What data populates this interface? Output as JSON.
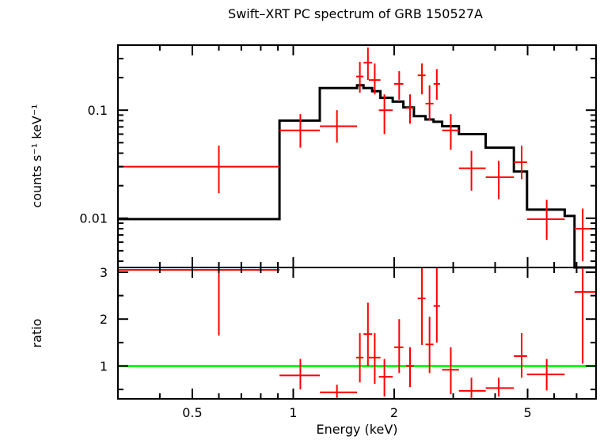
{
  "chart_data": [
    {
      "type": "scatter",
      "panel": "spectrum",
      "title": "Swift–XRT PC spectrum of GRB 150527A",
      "ylabel": "counts s⁻¹ keV⁻¹",
      "xscale": "log",
      "yscale": "log",
      "xlim": [
        0.3,
        8.0
      ],
      "ylim": [
        0.0035,
        0.4
      ],
      "y_tick_labels": [
        {
          "value": 0.1,
          "label": "0.1"
        },
        {
          "value": 0.01,
          "label": "0.01"
        }
      ],
      "series": [
        {
          "kind": "data",
          "color": "#ff0000",
          "points": [
            {
              "x": 0.6,
              "xlo": 0.3,
              "xhi": 0.91,
              "y": 0.03,
              "ylo": 0.017,
              "yhi": 0.047
            },
            {
              "x": 1.05,
              "xlo": 0.91,
              "xhi": 1.2,
              "y": 0.065,
              "ylo": 0.045,
              "yhi": 0.092
            },
            {
              "x": 1.35,
              "xlo": 1.2,
              "xhi": 1.55,
              "y": 0.071,
              "ylo": 0.05,
              "yhi": 0.1
            },
            {
              "x": 1.58,
              "xlo": 1.54,
              "xhi": 1.62,
              "y": 0.205,
              "ylo": 0.145,
              "yhi": 0.28
            },
            {
              "x": 1.67,
              "xlo": 1.62,
              "xhi": 1.72,
              "y": 0.275,
              "ylo": 0.19,
              "yhi": 0.38
            },
            {
              "x": 1.75,
              "xlo": 1.68,
              "xhi": 1.82,
              "y": 0.19,
              "ylo": 0.14,
              "yhi": 0.27
            },
            {
              "x": 1.87,
              "xlo": 1.8,
              "xhi": 1.98,
              "y": 0.1,
              "ylo": 0.06,
              "yhi": 0.14
            },
            {
              "x": 2.07,
              "xlo": 2.0,
              "xhi": 2.13,
              "y": 0.175,
              "ylo": 0.125,
              "yhi": 0.23
            },
            {
              "x": 2.23,
              "xlo": 2.17,
              "xhi": 2.29,
              "y": 0.105,
              "ylo": 0.075,
              "yhi": 0.14
            },
            {
              "x": 2.42,
              "xlo": 2.35,
              "xhi": 2.48,
              "y": 0.21,
              "ylo": 0.14,
              "yhi": 0.27
            },
            {
              "x": 2.55,
              "xlo": 2.48,
              "xhi": 2.62,
              "y": 0.115,
              "ylo": 0.08,
              "yhi": 0.17
            },
            {
              "x": 2.68,
              "xlo": 2.62,
              "xhi": 2.74,
              "y": 0.175,
              "ylo": 0.125,
              "yhi": 0.24
            },
            {
              "x": 2.95,
              "xlo": 2.78,
              "xhi": 3.12,
              "y": 0.065,
              "ylo": 0.043,
              "yhi": 0.092
            },
            {
              "x": 3.4,
              "xlo": 3.12,
              "xhi": 3.75,
              "y": 0.029,
              "ylo": 0.018,
              "yhi": 0.042
            },
            {
              "x": 4.1,
              "xlo": 3.75,
              "xhi": 4.55,
              "y": 0.024,
              "ylo": 0.015,
              "yhi": 0.034
            },
            {
              "x": 4.8,
              "xlo": 4.55,
              "xhi": 4.98,
              "y": 0.033,
              "ylo": 0.023,
              "yhi": 0.047
            },
            {
              "x": 5.7,
              "xlo": 4.98,
              "xhi": 6.45,
              "y": 0.0098,
              "ylo": 0.0063,
              "yhi": 0.0148
            },
            {
              "x": 7.3,
              "xlo": 6.9,
              "xhi": 8.0,
              "y": 0.008,
              "ylo": 0.004,
              "yhi": 0.0123
            }
          ]
        },
        {
          "kind": "model",
          "color": "#000000",
          "steps": [
            {
              "x0": 0.3,
              "x1": 0.91,
              "y": 0.0098
            },
            {
              "x0": 0.91,
              "x1": 1.2,
              "y": 0.08
            },
            {
              "x0": 1.2,
              "x1": 1.55,
              "y": 0.16
            },
            {
              "x0": 1.55,
              "x1": 1.62,
              "y": 0.17
            },
            {
              "x0": 1.62,
              "x1": 1.72,
              "y": 0.16
            },
            {
              "x0": 1.72,
              "x1": 1.82,
              "y": 0.15
            },
            {
              "x0": 1.82,
              "x1": 1.98,
              "y": 0.13
            },
            {
              "x0": 1.98,
              "x1": 2.13,
              "y": 0.12
            },
            {
              "x0": 2.13,
              "x1": 2.29,
              "y": 0.106
            },
            {
              "x0": 2.29,
              "x1": 2.48,
              "y": 0.088
            },
            {
              "x0": 2.48,
              "x1": 2.62,
              "y": 0.082
            },
            {
              "x0": 2.62,
              "x1": 2.78,
              "y": 0.078
            },
            {
              "x0": 2.78,
              "x1": 3.12,
              "y": 0.071
            },
            {
              "x0": 3.12,
              "x1": 3.75,
              "y": 0.06
            },
            {
              "x0": 3.75,
              "x1": 4.55,
              "y": 0.045
            },
            {
              "x0": 4.55,
              "x1": 4.98,
              "y": 0.027
            },
            {
              "x0": 4.98,
              "x1": 6.45,
              "y": 0.012
            },
            {
              "x0": 6.45,
              "x1": 6.9,
              "y": 0.0105
            },
            {
              "x0": 6.9,
              "x1": 8.0,
              "y": 0.0033
            }
          ]
        }
      ]
    },
    {
      "type": "scatter",
      "panel": "ratio",
      "xlabel": "Energy (keV)",
      "ylabel": "ratio",
      "xscale": "log",
      "yscale": "linear",
      "xlim": [
        0.3,
        8.0
      ],
      "ylim": [
        0.3,
        3.1
      ],
      "x_tick_labels": [
        {
          "value": 0.5,
          "label": "0.5"
        },
        {
          "value": 1,
          "label": "1"
        },
        {
          "value": 2,
          "label": "2"
        },
        {
          "value": 5,
          "label": "5"
        }
      ],
      "y_tick_labels": [
        {
          "value": 1,
          "label": "1"
        },
        {
          "value": 2,
          "label": "2"
        },
        {
          "value": 3,
          "label": "3"
        }
      ],
      "reference_line": {
        "y": 1,
        "color": "#00ff00"
      },
      "series": [
        {
          "kind": "data",
          "color": "#ff0000",
          "points": [
            {
              "x": 0.6,
              "xlo": 0.3,
              "xhi": 0.91,
              "y": 3.05,
              "ylo": 1.65,
              "yhi": 3.1
            },
            {
              "x": 1.05,
              "xlo": 0.91,
              "xhi": 1.2,
              "y": 0.8,
              "ylo": 0.5,
              "yhi": 1.15
            },
            {
              "x": 1.35,
              "xlo": 1.2,
              "xhi": 1.55,
              "y": 0.44,
              "ylo": 0.32,
              "yhi": 0.6
            },
            {
              "x": 1.58,
              "xlo": 1.54,
              "xhi": 1.62,
              "y": 1.18,
              "ylo": 0.65,
              "yhi": 1.7
            },
            {
              "x": 1.67,
              "xlo": 1.62,
              "xhi": 1.72,
              "y": 1.68,
              "ylo": 1.0,
              "yhi": 2.35
            },
            {
              "x": 1.75,
              "xlo": 1.68,
              "xhi": 1.82,
              "y": 1.18,
              "ylo": 0.62,
              "yhi": 1.7
            },
            {
              "x": 1.87,
              "xlo": 1.8,
              "xhi": 1.98,
              "y": 0.77,
              "ylo": 0.35,
              "yhi": 1.15
            },
            {
              "x": 2.07,
              "xlo": 2.0,
              "xhi": 2.13,
              "y": 1.4,
              "ylo": 0.85,
              "yhi": 2.0
            },
            {
              "x": 2.23,
              "xlo": 2.17,
              "xhi": 2.29,
              "y": 1.0,
              "ylo": 0.55,
              "yhi": 1.4
            },
            {
              "x": 2.42,
              "xlo": 2.35,
              "xhi": 2.48,
              "y": 2.44,
              "ylo": 1.45,
              "yhi": 3.1
            },
            {
              "x": 2.55,
              "xlo": 2.48,
              "xhi": 2.62,
              "y": 1.46,
              "ylo": 0.85,
              "yhi": 2.05
            },
            {
              "x": 2.68,
              "xlo": 2.62,
              "xhi": 2.74,
              "y": 2.28,
              "ylo": 1.5,
              "yhi": 3.1
            },
            {
              "x": 2.95,
              "xlo": 2.78,
              "xhi": 3.12,
              "y": 0.92,
              "ylo": 0.4,
              "yhi": 1.4
            },
            {
              "x": 3.4,
              "xlo": 3.12,
              "xhi": 3.75,
              "y": 0.47,
              "ylo": 0.32,
              "yhi": 0.75
            },
            {
              "x": 4.1,
              "xlo": 3.75,
              "xhi": 4.55,
              "y": 0.53,
              "ylo": 0.35,
              "yhi": 0.75
            },
            {
              "x": 4.8,
              "xlo": 4.55,
              "xhi": 4.98,
              "y": 1.21,
              "ylo": 0.75,
              "yhi": 1.7
            },
            {
              "x": 5.7,
              "xlo": 4.98,
              "xhi": 6.45,
              "y": 0.82,
              "ylo": 0.48,
              "yhi": 1.15
            },
            {
              "x": 7.3,
              "xlo": 6.9,
              "xhi": 8.0,
              "y": 2.58,
              "ylo": 1.05,
              "yhi": 3.1
            }
          ]
        }
      ]
    }
  ]
}
